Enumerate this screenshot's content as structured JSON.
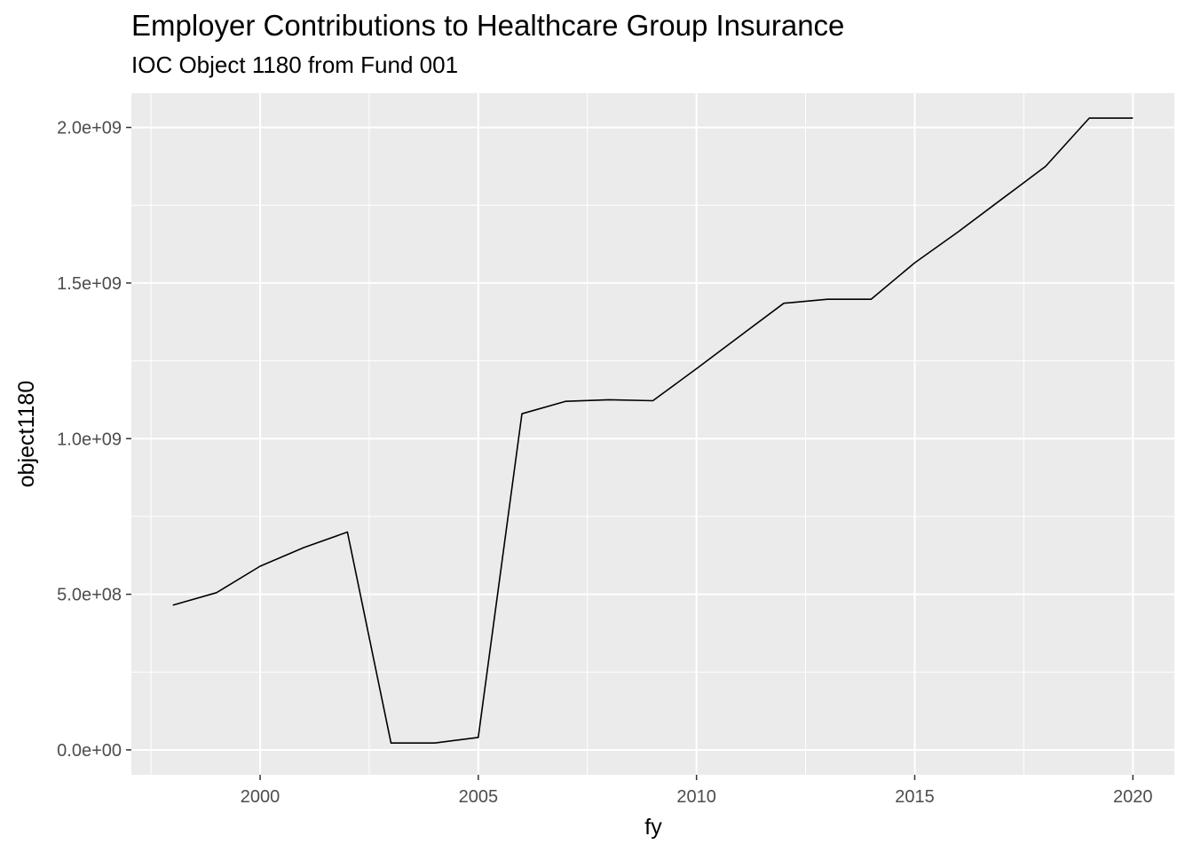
{
  "chart_data": {
    "type": "line",
    "title": "Employer Contributions to Healthcare Group Insurance",
    "subtitle": "IOC Object 1180 from Fund 001",
    "xlabel": "fy",
    "ylabel": "object1180",
    "xlim": [
      1997.05,
      2020.95
    ],
    "ylim": [
      -80000000,
      2110000000
    ],
    "x_major_ticks": [
      2000,
      2005,
      2010,
      2015,
      2020
    ],
    "x_tick_labels": [
      "2000",
      "2005",
      "2010",
      "2015",
      "2020"
    ],
    "x_minor_ticks": [
      1997.5,
      2002.5,
      2007.5,
      2012.5,
      2017.5
    ],
    "y_major_ticks": [
      0,
      500000000,
      1000000000,
      1500000000,
      2000000000
    ],
    "y_tick_labels": [
      "0.0e+00",
      "5.0e+08",
      "1.0e+09",
      "1.5e+09",
      "2.0e+09"
    ],
    "y_minor_ticks": [
      250000000,
      750000000,
      1250000000,
      1750000000
    ],
    "grid": true,
    "panel_background": "#ebebeb",
    "line_color": "#000000",
    "series": [
      {
        "x": [
          1998,
          1999,
          2000,
          2001,
          2002,
          2003,
          2004,
          2005,
          2006,
          2007,
          2008,
          2009,
          2010,
          2011,
          2012,
          2013,
          2014,
          2015,
          2016,
          2017,
          2018,
          2019,
          2020
        ],
        "values": [
          465000000,
          505000000,
          590000000,
          650000000,
          700000000,
          22000000,
          22000000,
          40000000,
          1080000000,
          1120000000,
          1125000000,
          1122000000,
          1225000000,
          1330000000,
          1435000000,
          1448000000,
          1448000000,
          1565000000,
          1665000000,
          1770000000,
          1875000000,
          2030000000,
          2030000000
        ]
      }
    ]
  }
}
